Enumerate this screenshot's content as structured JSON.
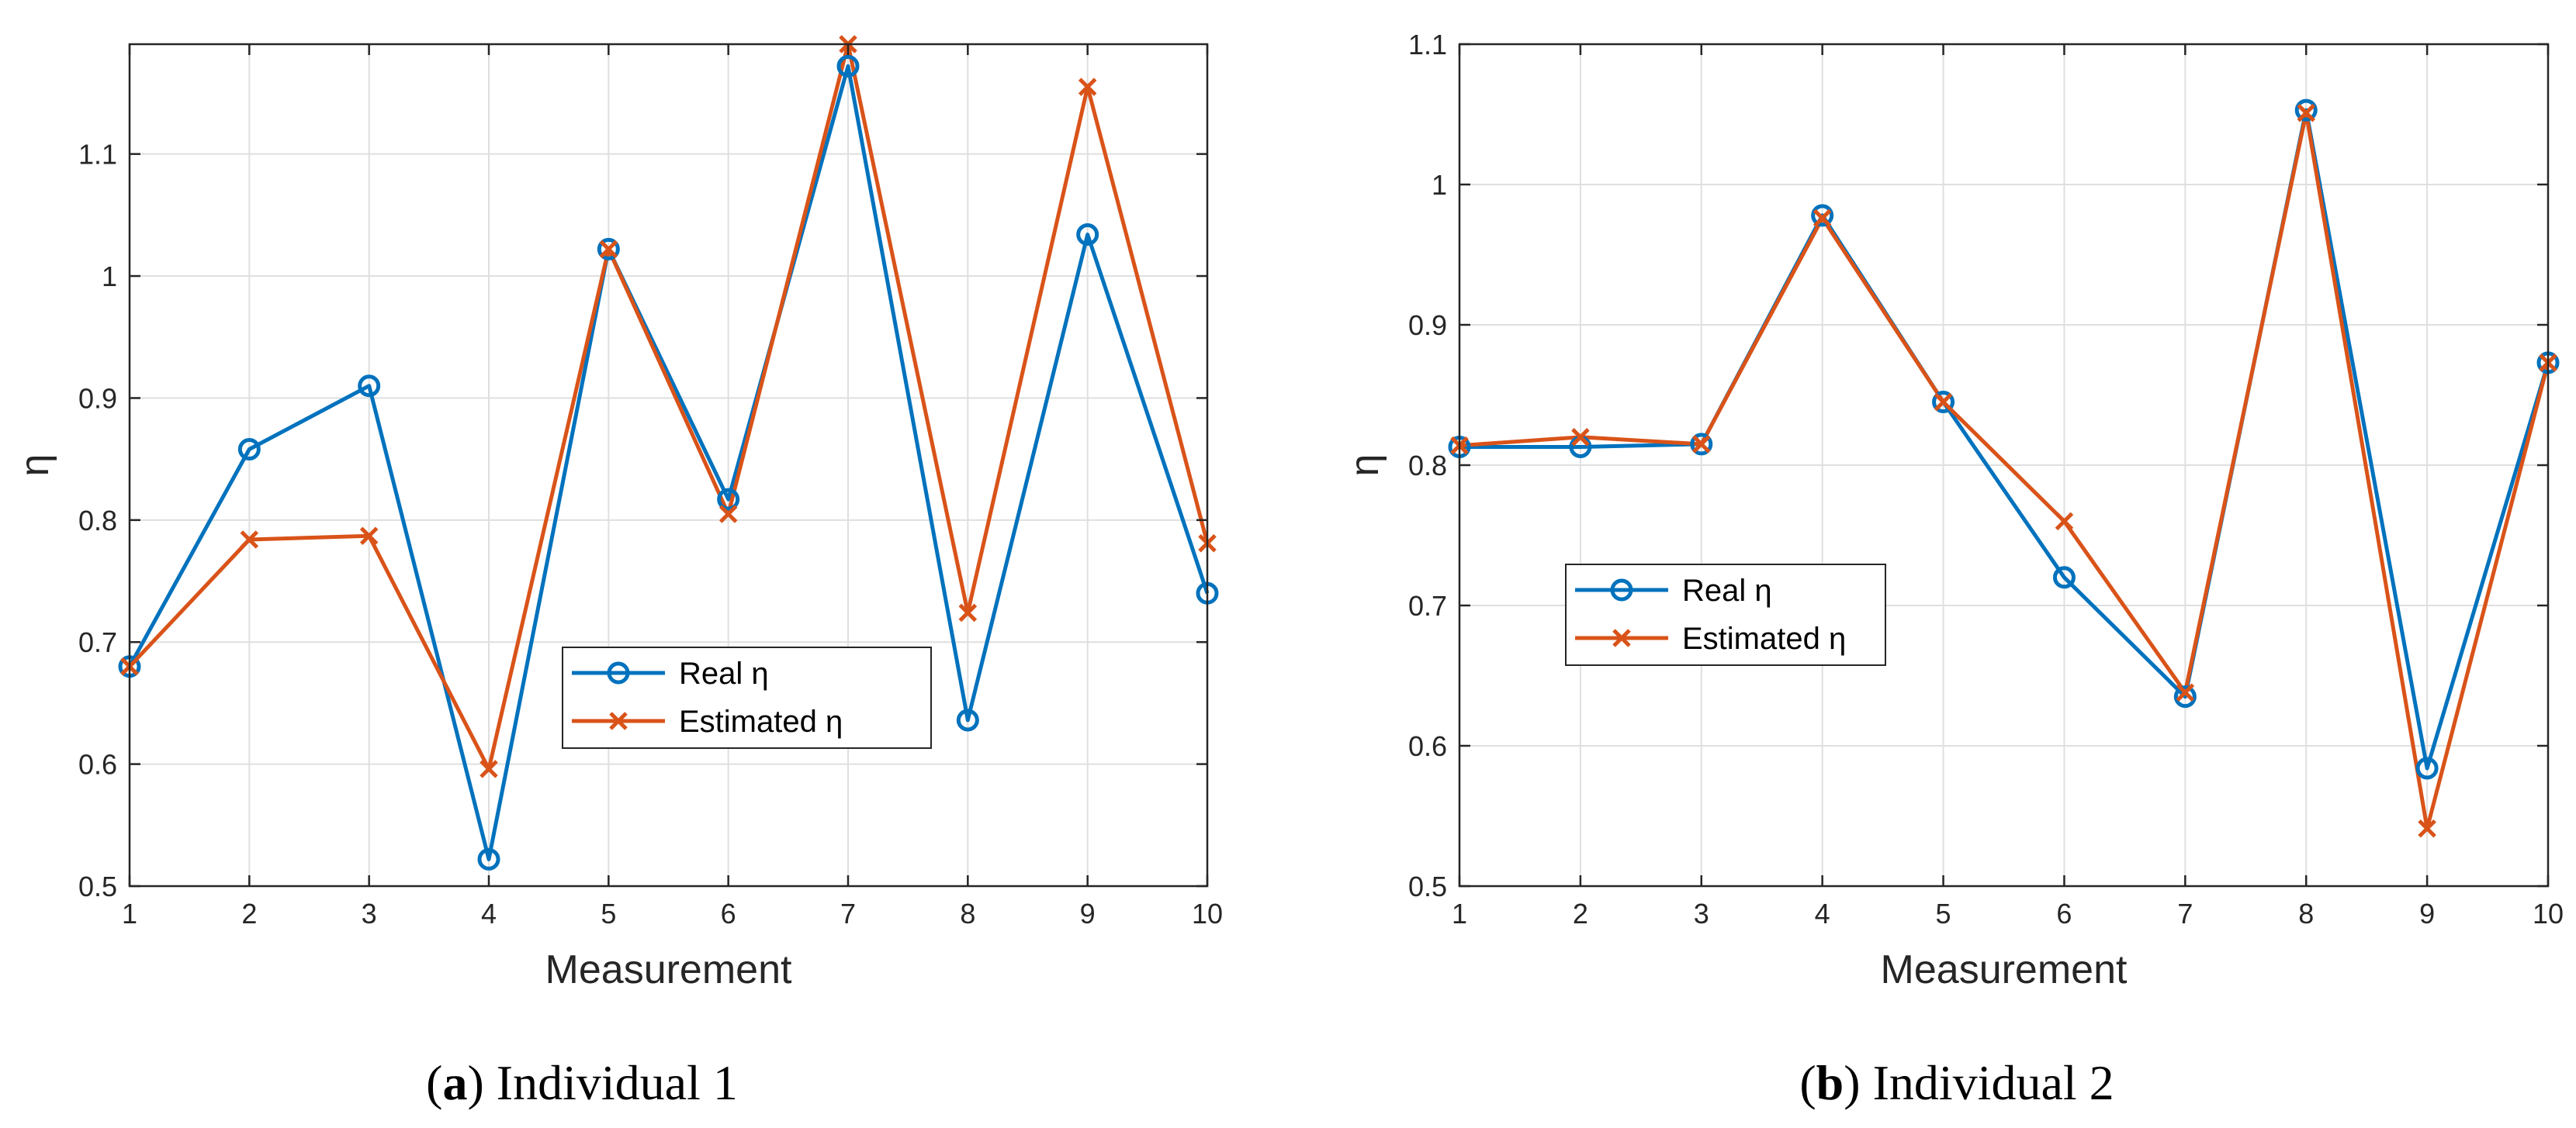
{
  "colors": {
    "real": "#0072BD",
    "estimated": "#D95319",
    "grid": "#DFDFDF",
    "axis": "#262626"
  },
  "chart_data": [
    {
      "type": "line",
      "id": "a",
      "caption_letter": "a",
      "caption_text": " Individual 1",
      "title": "",
      "xlabel": "Measurement",
      "ylabel": "η",
      "xlim": [
        1,
        10
      ],
      "ylim": [
        0.5,
        1.19
      ],
      "x": [
        1,
        2,
        3,
        4,
        5,
        6,
        7,
        8,
        9,
        10
      ],
      "xticks": [
        1,
        2,
        3,
        4,
        5,
        6,
        7,
        8,
        9,
        10
      ],
      "yticks": [
        0.5,
        0.6,
        0.7,
        0.8,
        0.9,
        1.0,
        1.1
      ],
      "ytick_labels": [
        "0.5",
        "0.6",
        "0.7",
        "0.8",
        "0.9",
        "1",
        "1.1"
      ],
      "grid": true,
      "legend_position": "lower-center",
      "series": [
        {
          "name": "Real η",
          "marker": "circle",
          "color": "#0072BD",
          "values": [
            0.68,
            0.858,
            0.91,
            0.522,
            1.022,
            0.817,
            1.172,
            0.636,
            1.034,
            0.74
          ]
        },
        {
          "name": "Estimated η",
          "marker": "x",
          "color": "#D95319",
          "values": [
            0.68,
            0.784,
            0.787,
            0.596,
            1.022,
            0.805,
            1.19,
            0.724,
            1.155,
            0.781
          ]
        }
      ]
    },
    {
      "type": "line",
      "id": "b",
      "caption_letter": "b",
      "caption_text": " Individual 2",
      "title": "",
      "xlabel": "Measurement",
      "ylabel": "η",
      "xlim": [
        1,
        10
      ],
      "ylim": [
        0.5,
        1.1
      ],
      "x": [
        1,
        2,
        3,
        4,
        5,
        6,
        7,
        8,
        9,
        10
      ],
      "xticks": [
        1,
        2,
        3,
        4,
        5,
        6,
        7,
        8,
        9,
        10
      ],
      "yticks": [
        0.5,
        0.6,
        0.7,
        0.8,
        0.9,
        1.0,
        1.1
      ],
      "ytick_labels": [
        "0.5",
        "0.6",
        "0.7",
        "0.8",
        "0.9",
        "1",
        "1.1"
      ],
      "grid": true,
      "legend_position": "middle-left",
      "series": [
        {
          "name": "Real η",
          "marker": "circle",
          "color": "#0072BD",
          "values": [
            0.813,
            0.813,
            0.815,
            0.978,
            0.845,
            0.72,
            0.635,
            1.053,
            0.584,
            0.873
          ]
        },
        {
          "name": "Estimated η",
          "marker": "x",
          "color": "#D95319",
          "values": [
            0.814,
            0.82,
            0.815,
            0.976,
            0.845,
            0.76,
            0.638,
            1.051,
            0.541,
            0.873
          ]
        }
      ]
    }
  ]
}
